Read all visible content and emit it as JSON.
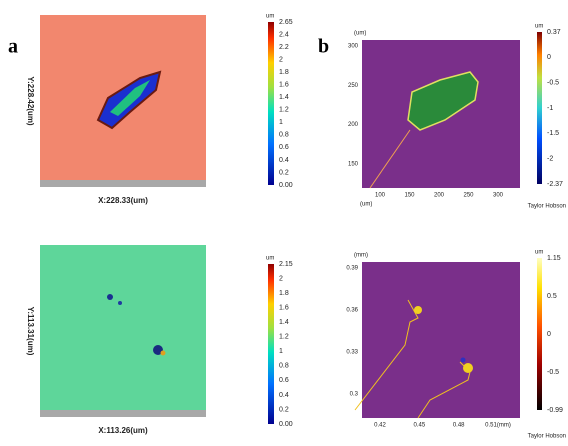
{
  "panels": [
    {
      "label": "a",
      "y_axis": "Y:228.42(um)",
      "x_axis": "X:228.33(um)",
      "colorbar": {
        "unit": "um",
        "ticks": [
          "2.65",
          "2.4",
          "2.2",
          "2",
          "1.8",
          "1.6",
          "1.4",
          "1.2",
          "1",
          "0.8",
          "0.6",
          "0.4",
          "0.2",
          "0.00"
        ]
      }
    },
    {
      "label": "b",
      "unit_top": "(um)",
      "yticks": [
        "300",
        "250",
        "200",
        "150"
      ],
      "xticks": [
        "100",
        "150",
        "200",
        "250",
        "300"
      ],
      "unit_bottom": "(um)",
      "brand": "Taylor Hobson",
      "colorbar": {
        "unit": "um",
        "ticks": [
          "0.37",
          "0",
          "-0.5",
          "-1",
          "-1.5",
          "-2",
          "-2.37"
        ]
      }
    },
    {
      "y_axis": "Y:113.31(um)",
      "x_axis": "X:113.26(um)",
      "colorbar": {
        "unit": "um",
        "ticks": [
          "2.15",
          "2",
          "1.8",
          "1.6",
          "1.4",
          "1.2",
          "1",
          "0.8",
          "0.6",
          "0.4",
          "0.2",
          "0.00"
        ]
      }
    },
    {
      "unit_top": "(mm)",
      "yticks": [
        "0.39",
        "0.36",
        "0.33",
        "0.3"
      ],
      "xticks": [
        "0.42",
        "0.45",
        "0.48",
        "0.51(mm)"
      ],
      "brand": "Taylor Hobson",
      "colorbar": {
        "unit": "um",
        "ticks": [
          "1.15",
          "0.5",
          "0",
          "-0.5",
          "-0.99"
        ]
      }
    }
  ]
}
